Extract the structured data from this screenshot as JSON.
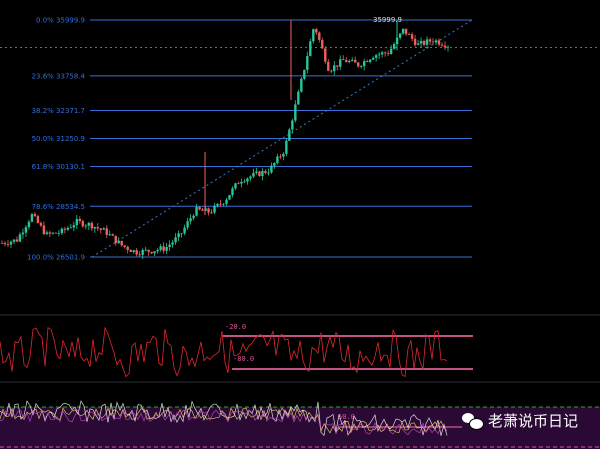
{
  "chart_data": {
    "type": "candlestick",
    "fibonacci": [
      {
        "level": "0.0%",
        "price": "35999.9"
      },
      {
        "level": "23.6%",
        "price": "33758.4"
      },
      {
        "level": "38.2%",
        "price": "32371.7"
      },
      {
        "level": "50.0%",
        "price": "31250.9"
      },
      {
        "level": "61.8%",
        "price": "30130.1"
      },
      {
        "level": "78.6%",
        "price": "28534.5"
      },
      {
        "level": "100.0%",
        "price": "26501.9"
      }
    ],
    "high_label": "35999.9",
    "price_range": [
      26501.9,
      35999.9
    ],
    "price_path": [
      27064,
      27184,
      28186,
      27385,
      27505,
      27906,
      27786,
      27500,
      26984,
      26703,
      26750,
      26864,
      27385,
      28386,
      28306,
      28787,
      29589,
      29789,
      29990,
      30791,
      33195,
      35800,
      33996,
      34397,
      34200,
      34597,
      34700,
      35599,
      34998,
      35200,
      34998
    ],
    "current_price_line": 34900,
    "up_color": "#26c79a",
    "down_color": "#f0605a",
    "oscillator_1": {
      "upper": "-20.0",
      "lower": "-80.0",
      "line_color": "#e02830",
      "band_color": "#ff6fb0"
    },
    "oscillator_2": {
      "mid": "50.0",
      "bg_color": "#2a0a35",
      "colors": [
        "#ffffff",
        "#f5e663",
        "#d04ad0"
      ]
    }
  },
  "watermark": {
    "text": "老萧说币日记",
    "icon": "wechat-icon"
  }
}
